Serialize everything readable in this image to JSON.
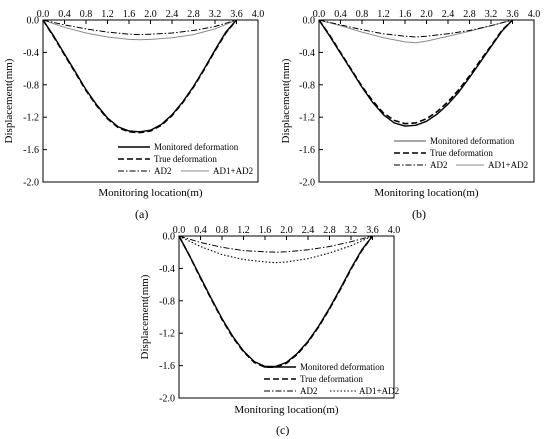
{
  "figure": {
    "panels": [
      {
        "label": "(a)",
        "legend_position": "bottom-right",
        "legend_layout": "top two entries stacked, then AD2 and AD1+AD2 side by side",
        "chart_data": {
          "type": "line",
          "xlabel": "Monitoring location(m)",
          "ylabel": "Displacement(mm)",
          "xlim": [
            0.0,
            4.0
          ],
          "ylim": [
            -2.0,
            0.0
          ],
          "x_ticks": [
            "0.0",
            "0.4",
            "0.8",
            "1.2",
            "1.6",
            "2.0",
            "2.4",
            "2.8",
            "3.2",
            "3.6",
            "4.0"
          ],
          "y_ticks": [
            "0.0",
            "-0.4",
            "-0.8",
            "-1.2",
            "-1.6",
            "-2.0"
          ],
          "grid": false,
          "series": [
            {
              "name": "Monitored deformation",
              "style": "solid",
              "color": "#000000",
              "width": 1.4,
              "x": [
                0,
                0.2,
                0.4,
                0.6,
                0.8,
                1.0,
                1.2,
                1.4,
                1.6,
                1.8,
                2.0,
                2.2,
                2.4,
                2.6,
                2.8,
                3.0,
                3.2,
                3.4,
                3.6
              ],
              "y": [
                0,
                -0.2,
                -0.42,
                -0.64,
                -0.86,
                -1.05,
                -1.21,
                -1.32,
                -1.37,
                -1.38,
                -1.36,
                -1.29,
                -1.17,
                -1.01,
                -0.82,
                -0.6,
                -0.37,
                -0.15,
                0
              ]
            },
            {
              "name": "True deformation",
              "style": "dashed",
              "color": "#000000",
              "width": 1.6,
              "x": [
                0,
                0.2,
                0.4,
                0.6,
                0.8,
                1.0,
                1.2,
                1.4,
                1.6,
                1.8,
                2.0,
                2.2,
                2.4,
                2.6,
                2.8,
                3.0,
                3.2,
                3.4,
                3.6
              ],
              "y": [
                0,
                -0.21,
                -0.43,
                -0.65,
                -0.87,
                -1.06,
                -1.22,
                -1.33,
                -1.38,
                -1.39,
                -1.37,
                -1.3,
                -1.18,
                -1.02,
                -0.83,
                -0.61,
                -0.38,
                -0.16,
                0
              ]
            },
            {
              "name": "AD2",
              "style": "dashdot",
              "color": "#000000",
              "width": 1.0,
              "x": [
                0,
                0.4,
                0.8,
                1.2,
                1.6,
                1.8,
                2.0,
                2.4,
                2.8,
                3.2,
                3.6
              ],
              "y": [
                0,
                -0.06,
                -0.11,
                -0.15,
                -0.175,
                -0.18,
                -0.175,
                -0.16,
                -0.13,
                -0.08,
                0
              ]
            },
            {
              "name": "AD1+AD2",
              "style": "solid",
              "color": "#8c8c8c",
              "width": 1.0,
              "x": [
                0,
                0.4,
                0.8,
                1.2,
                1.6,
                1.8,
                2.0,
                2.4,
                2.8,
                3.2,
                3.6
              ],
              "y": [
                0,
                -0.09,
                -0.16,
                -0.21,
                -0.24,
                -0.245,
                -0.24,
                -0.22,
                -0.18,
                -0.11,
                0
              ]
            }
          ]
        }
      },
      {
        "label": "(b)",
        "legend_position": "bottom-right",
        "legend_layout": "top two entries stacked, then AD2 and AD1+AD2 side by side",
        "chart_data": {
          "type": "line",
          "xlabel": "Monitoring location(m)",
          "ylabel": "Displacement(mm)",
          "xlim": [
            0.0,
            4.0
          ],
          "ylim": [
            -2.0,
            0.0
          ],
          "x_ticks": [
            "0.0",
            "0.4",
            "0.8",
            "1.2",
            "1.6",
            "2.0",
            "2.4",
            "2.8",
            "3.2",
            "3.6",
            "4.0"
          ],
          "y_ticks": [
            "0.0",
            "-0.4",
            "-0.8",
            "-1.2",
            "-1.6",
            "-2.0"
          ],
          "grid": false,
          "series": [
            {
              "name": "Monitored deformation",
              "style": "solid",
              "color": "#000000",
              "width": 1.4,
              "x": [
                0,
                0.2,
                0.4,
                0.6,
                0.8,
                1.0,
                1.2,
                1.4,
                1.6,
                1.8,
                2.0,
                2.2,
                2.4,
                2.6,
                2.8,
                3.0,
                3.2,
                3.4,
                3.6
              ],
              "y": [
                0,
                -0.2,
                -0.41,
                -0.62,
                -0.83,
                -1.02,
                -1.17,
                -1.27,
                -1.31,
                -1.3,
                -1.25,
                -1.16,
                -1.04,
                -0.89,
                -0.71,
                -0.52,
                -0.33,
                -0.14,
                0
              ]
            },
            {
              "name": "True deformation",
              "style": "dashed",
              "color": "#000000",
              "width": 1.6,
              "x": [
                0,
                0.2,
                0.4,
                0.6,
                0.8,
                1.0,
                1.2,
                1.4,
                1.6,
                1.8,
                2.0,
                2.2,
                2.4,
                2.6,
                2.8,
                3.0,
                3.2,
                3.4,
                3.6
              ],
              "y": [
                0,
                -0.19,
                -0.4,
                -0.61,
                -0.82,
                -1.0,
                -1.15,
                -1.24,
                -1.28,
                -1.27,
                -1.22,
                -1.13,
                -1.01,
                -0.86,
                -0.69,
                -0.5,
                -0.32,
                -0.13,
                0
              ]
            },
            {
              "name": "AD2",
              "style": "dashdot",
              "color": "#000000",
              "width": 1.0,
              "x": [
                0,
                0.4,
                0.8,
                1.2,
                1.6,
                1.8,
                2.0,
                2.4,
                2.8,
                3.2,
                3.6
              ],
              "y": [
                0,
                -0.06,
                -0.12,
                -0.17,
                -0.2,
                -0.21,
                -0.2,
                -0.17,
                -0.13,
                -0.07,
                0
              ]
            },
            {
              "name": "AD1+AD2",
              "style": "solid",
              "color": "#8c8c8c",
              "width": 1.0,
              "x": [
                0,
                0.4,
                0.8,
                1.2,
                1.6,
                1.8,
                2.0,
                2.4,
                2.8,
                3.2,
                3.6
              ],
              "y": [
                0,
                -0.07,
                -0.15,
                -0.22,
                -0.27,
                -0.28,
                -0.26,
                -0.2,
                -0.14,
                -0.07,
                0
              ]
            }
          ]
        }
      },
      {
        "label": "(c)",
        "legend_position": "bottom-right",
        "legend_layout": "top two entries stacked, then AD2 and AD1+AD2 side by side",
        "chart_data": {
          "type": "line",
          "xlabel": "Monitoring location(m)",
          "ylabel": "Displacement(mm)",
          "xlim": [
            0.0,
            4.0
          ],
          "ylim": [
            -2.0,
            0.0
          ],
          "x_ticks": [
            "0.0",
            "0.4",
            "0.8",
            "1.2",
            "1.6",
            "2.0",
            "2.4",
            "2.8",
            "3.2",
            "3.6",
            "4.0"
          ],
          "y_ticks": [
            "0.0",
            "-0.4",
            "-0.8",
            "-1.2",
            "-1.6",
            "-2.0"
          ],
          "grid": false,
          "series": [
            {
              "name": "Monitored deformation",
              "style": "solid",
              "color": "#000000",
              "width": 1.4,
              "x": [
                0,
                0.2,
                0.4,
                0.6,
                0.8,
                1.0,
                1.2,
                1.4,
                1.6,
                1.8,
                2.0,
                2.2,
                2.4,
                2.6,
                2.8,
                3.0,
                3.2,
                3.4,
                3.6
              ],
              "y": [
                0,
                -0.25,
                -0.51,
                -0.77,
                -1.02,
                -1.24,
                -1.42,
                -1.55,
                -1.61,
                -1.61,
                -1.56,
                -1.45,
                -1.3,
                -1.11,
                -0.89,
                -0.65,
                -0.4,
                -0.17,
                0
              ]
            },
            {
              "name": "True deformation",
              "style": "dashed",
              "color": "#000000",
              "width": 1.6,
              "x": [
                0,
                0.2,
                0.4,
                0.6,
                0.8,
                1.0,
                1.2,
                1.4,
                1.6,
                1.8,
                2.0,
                2.2,
                2.4,
                2.6,
                2.8,
                3.0,
                3.2,
                3.4,
                3.6
              ],
              "y": [
                0,
                -0.25,
                -0.52,
                -0.78,
                -1.03,
                -1.25,
                -1.43,
                -1.56,
                -1.62,
                -1.62,
                -1.57,
                -1.46,
                -1.31,
                -1.12,
                -0.9,
                -0.66,
                -0.41,
                -0.18,
                0
              ]
            },
            {
              "name": "AD2",
              "style": "dashdot",
              "color": "#000000",
              "width": 1.0,
              "x": [
                0,
                0.4,
                0.8,
                1.2,
                1.6,
                1.8,
                2.0,
                2.4,
                2.8,
                3.2,
                3.6
              ],
              "y": [
                0,
                -0.08,
                -0.14,
                -0.18,
                -0.195,
                -0.2,
                -0.195,
                -0.17,
                -0.13,
                -0.07,
                0
              ]
            },
            {
              "name": "AD1+AD2",
              "style": "dotted",
              "color": "#000000",
              "width": 1.1,
              "x": [
                0,
                0.4,
                0.8,
                1.2,
                1.6,
                1.8,
                2.0,
                2.4,
                2.8,
                3.2,
                3.6
              ],
              "y": [
                0,
                -0.13,
                -0.23,
                -0.29,
                -0.32,
                -0.33,
                -0.32,
                -0.28,
                -0.21,
                -0.12,
                0
              ]
            }
          ]
        }
      }
    ]
  }
}
